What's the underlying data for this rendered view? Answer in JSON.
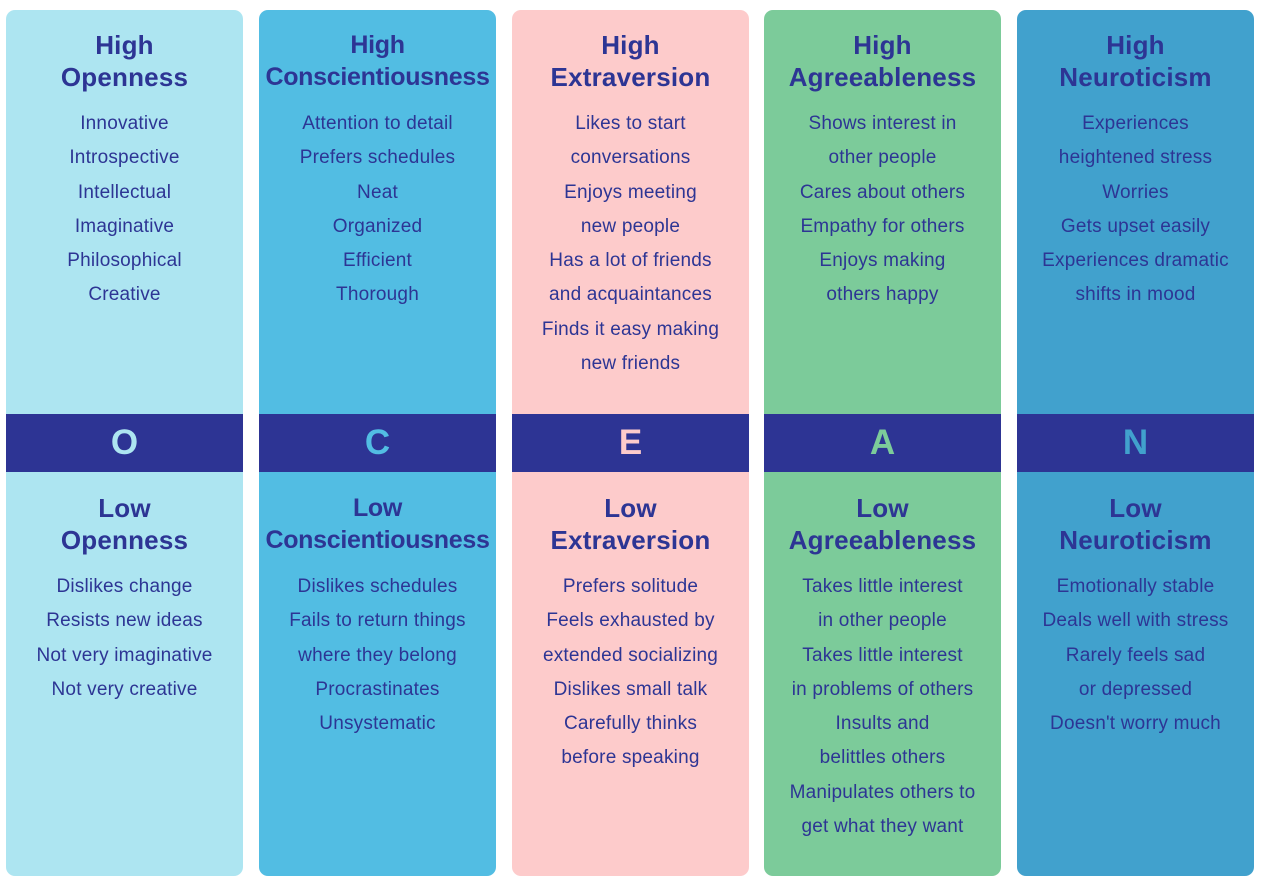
{
  "traits": [
    {
      "letter": "O",
      "high": {
        "title_line1": "High",
        "title_line2": "Openness",
        "items": [
          "Innovative",
          "Introspective",
          "Intellectual",
          "Imaginative",
          "Philosophical",
          "Creative"
        ]
      },
      "low": {
        "title_line1": "Low",
        "title_line2": "Openness",
        "items": [
          "Dislikes change",
          "Resists new ideas",
          "Not very imaginative",
          "Not very creative"
        ]
      },
      "color": "#ade5f1"
    },
    {
      "letter": "C",
      "high": {
        "title_line1": "High",
        "title_line2": "Conscientiousness",
        "items": [
          "Attention to detail",
          "Prefers schedules",
          "Neat",
          "Organized",
          "Efficient",
          "Thorough"
        ]
      },
      "low": {
        "title_line1": "Low",
        "title_line2": "Conscientiousness",
        "items": [
          "Dislikes schedules",
          "Fails to return things",
          "where they belong",
          "Procrastinates",
          "Unsystematic"
        ]
      },
      "color": "#52bde3"
    },
    {
      "letter": "E",
      "high": {
        "title_line1": "High",
        "title_line2": "Extraversion",
        "items": [
          "Likes to start",
          "conversations",
          "Enjoys meeting",
          "new people",
          "Has a lot of friends",
          "and acquaintances",
          "Finds it easy making",
          "new friends"
        ]
      },
      "low": {
        "title_line1": "Low",
        "title_line2": "Extraversion",
        "items": [
          "Prefers solitude",
          "Feels exhausted by",
          "extended socializing",
          "Dislikes small talk",
          "Carefully thinks",
          "before speaking"
        ]
      },
      "color": "#fdcbcb"
    },
    {
      "letter": "A",
      "high": {
        "title_line1": "High",
        "title_line2": "Agreeableness",
        "items": [
          "Shows interest in",
          "other people",
          "Cares about others",
          "Empathy for others",
          "Enjoys making",
          "others happy"
        ]
      },
      "low": {
        "title_line1": "Low",
        "title_line2": "Agreeableness",
        "items": [
          "Takes little interest",
          "in other people",
          "Takes little interest",
          "in problems of others",
          "Insults and",
          "belittles others",
          "Manipulates others to",
          "get what they want"
        ]
      },
      "color": "#7ccb9a"
    },
    {
      "letter": "N",
      "high": {
        "title_line1": "High",
        "title_line2": "Neuroticism",
        "items": [
          "Experiences",
          "heightened stress",
          "Worries",
          "Gets upset easily",
          "Experiences dramatic",
          "shifts in mood"
        ]
      },
      "low": {
        "title_line1": "Low",
        "title_line2": "Neuroticism",
        "items": [
          "Emotionally stable",
          "Deals well with stress",
          "Rarely feels sad",
          "or depressed",
          "Doesn't worry much"
        ]
      },
      "color": "#41a1cd"
    }
  ],
  "band_color": "#2d3494",
  "text_color": "#2d3594"
}
